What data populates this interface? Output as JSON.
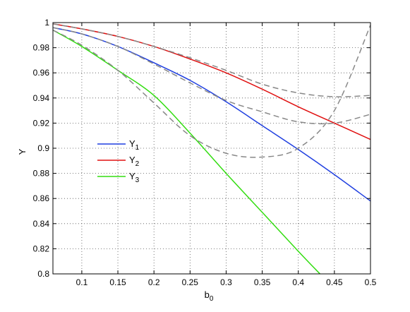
{
  "chart_data": {
    "type": "line",
    "title": "",
    "xlabel": {
      "main": "b",
      "sub": "0"
    },
    "ylabel": "Y",
    "xlim": [
      0.06,
      0.5
    ],
    "ylim": [
      0.8,
      1.0
    ],
    "xticks": [
      0.1,
      0.15,
      0.2,
      0.25,
      0.3,
      0.35,
      0.4,
      0.45,
      0.5
    ],
    "xtick_labels": [
      "0.1",
      "0.15",
      "0.2",
      "0.25",
      "0.3",
      "0.35",
      "0.4",
      "0.45",
      "0.5"
    ],
    "yticks": [
      0.8,
      0.82,
      0.84,
      0.86,
      0.88,
      0.9,
      0.92,
      0.94,
      0.96,
      0.98,
      1.0
    ],
    "ytick_labels": [
      "0.8",
      "0.82",
      "0.84",
      "0.86",
      "0.88",
      "0.9",
      "0.92",
      "0.94",
      "0.96",
      "0.98",
      "1"
    ],
    "grid": true,
    "grid_style": "dotted",
    "legend_position": "center-left",
    "series": [
      {
        "name": "Y",
        "name_sub": "1",
        "color": "#1f3fe0",
        "style": "solid",
        "points": [
          [
            0.06,
            0.996
          ],
          [
            0.1,
            0.991
          ],
          [
            0.15,
            0.981
          ],
          [
            0.2,
            0.968
          ],
          [
            0.25,
            0.954
          ],
          [
            0.3,
            0.937
          ],
          [
            0.35,
            0.918
          ],
          [
            0.4,
            0.899
          ],
          [
            0.45,
            0.879
          ],
          [
            0.5,
            0.858
          ]
        ]
      },
      {
        "name": "Y",
        "name_sub": "2",
        "color": "#e01010",
        "style": "solid",
        "points": [
          [
            0.06,
            0.999
          ],
          [
            0.1,
            0.995
          ],
          [
            0.15,
            0.989
          ],
          [
            0.2,
            0.981
          ],
          [
            0.25,
            0.971
          ],
          [
            0.3,
            0.96
          ],
          [
            0.35,
            0.947
          ],
          [
            0.4,
            0.933
          ],
          [
            0.45,
            0.92
          ],
          [
            0.5,
            0.907
          ]
        ]
      },
      {
        "name": "Y",
        "name_sub": "3",
        "color": "#33dd11",
        "style": "solid",
        "points": [
          [
            0.06,
            0.994
          ],
          [
            0.1,
            0.981
          ],
          [
            0.15,
            0.962
          ],
          [
            0.2,
            0.942
          ],
          [
            0.25,
            0.912
          ],
          [
            0.3,
            0.88
          ],
          [
            0.35,
            0.849
          ],
          [
            0.4,
            0.818
          ],
          [
            0.43,
            0.8
          ]
        ]
      },
      {
        "name": "",
        "color": "#888888",
        "style": "dashed",
        "points": [
          [
            0.06,
            0.994
          ],
          [
            0.1,
            0.982
          ],
          [
            0.15,
            0.962
          ],
          [
            0.2,
            0.936
          ],
          [
            0.25,
            0.91
          ],
          [
            0.3,
            0.896
          ],
          [
            0.35,
            0.893
          ],
          [
            0.4,
            0.9
          ],
          [
            0.45,
            0.93
          ],
          [
            0.5,
            0.998
          ]
        ]
      },
      {
        "name": "",
        "color": "#888888",
        "style": "dashed",
        "points": [
          [
            0.06,
            0.996
          ],
          [
            0.1,
            0.991
          ],
          [
            0.15,
            0.981
          ],
          [
            0.2,
            0.967
          ],
          [
            0.25,
            0.952
          ],
          [
            0.3,
            0.938
          ],
          [
            0.35,
            0.929
          ],
          [
            0.4,
            0.921
          ],
          [
            0.45,
            0.92
          ],
          [
            0.5,
            0.927
          ]
        ]
      },
      {
        "name": "",
        "color": "#888888",
        "style": "dashed",
        "points": [
          [
            0.06,
            0.999
          ],
          [
            0.1,
            0.995
          ],
          [
            0.15,
            0.989
          ],
          [
            0.2,
            0.981
          ],
          [
            0.25,
            0.972
          ],
          [
            0.3,
            0.962
          ],
          [
            0.35,
            0.951
          ],
          [
            0.4,
            0.944
          ],
          [
            0.45,
            0.941
          ],
          [
            0.5,
            0.942
          ]
        ]
      }
    ]
  }
}
